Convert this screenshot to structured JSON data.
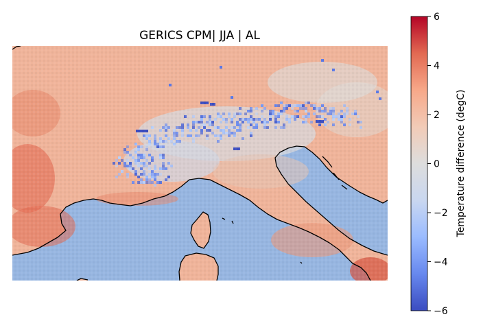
{
  "map": {
    "title": "GERICS CPM| JJA | AL",
    "sea_color": "#97b6e1",
    "coast_color": "#000000",
    "region_labels": []
  },
  "colorbar": {
    "label": "Temperature difference (degC)",
    "min": -6,
    "max": 6,
    "ticks": [
      "6",
      "4",
      "2",
      "0",
      "−2",
      "−4",
      "−6"
    ],
    "colormap": "coolwarm",
    "colors": [
      "#3b4cc0",
      "#6788ee",
      "#9abbff",
      "#c9d7f0",
      "#dddddd",
      "#f2cbb7",
      "#f7a889",
      "#e26952",
      "#b40426"
    ]
  }
}
